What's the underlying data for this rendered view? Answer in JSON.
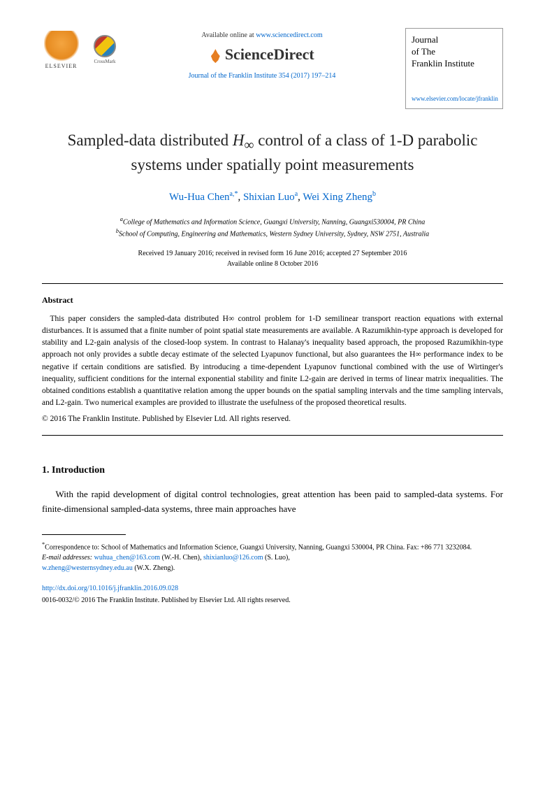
{
  "header": {
    "available_text": "Available online at ",
    "sciencedirect_url": "www.sciencedirect.com",
    "sciencedirect_brand": "ScienceDirect",
    "elsevier_label": "ELSEVIER",
    "crossmark_label": "CrossMark",
    "citation": "Journal of the Franklin Institute 354 (2017) 197–214",
    "journal_box_line1": "Journal",
    "journal_box_line2": "of The",
    "journal_box_line3": "Franklin Institute",
    "journal_locate_url": "www.elsevier.com/locate/jfranklin"
  },
  "title": {
    "pre": "Sampled-data distributed ",
    "symbol": "H",
    "sub": "∞",
    "post": " control of a class of 1-D parabolic systems under spatially point measurements"
  },
  "authors": [
    {
      "name": "Wu-Hua Chen",
      "affil": "a,",
      "corr": "*"
    },
    {
      "name": "Shixian Luo",
      "affil": "a",
      "corr": ""
    },
    {
      "name": "Wei Xing Zheng",
      "affil": "b",
      "corr": ""
    }
  ],
  "affiliations": {
    "a": "College of Mathematics and Information Science, Guangxi University, Nanning, Guangxi530004, PR China",
    "b": "School of Computing, Engineering and Mathematics, Western Sydney University, Sydney, NSW 2751, Australia"
  },
  "dates": {
    "received": "Received 19 January 2016; received in revised form 16 June 2016; accepted 27 September 2016",
    "online": "Available online 8 October 2016"
  },
  "abstract": {
    "heading": "Abstract",
    "text": "This paper considers the sampled-data distributed H∞ control problem for 1-D semilinear transport reaction equations with external disturbances. It is assumed that a finite number of point spatial state measurements are available. A Razumikhin-type approach is developed for stability and L2-gain analysis of the closed-loop system. In contrast to Halanay's inequality based approach, the proposed Razumikhin-type approach not only provides a subtle decay estimate of the selected Lyapunov functional, but also guarantees the H∞ performance index to be negative if certain conditions are satisfied. By introducing a time-dependent Lyapunov functional combined with the use of Wirtinger's inequality, sufficient conditions for the internal exponential stability and finite L2-gain are derived in terms of linear matrix inequalities. The obtained conditions establish a quantitative relation among the upper bounds on the spatial sampling intervals and the time sampling intervals, and L2-gain. Two numerical examples are provided to illustrate the usefulness of the proposed theoretical results.",
    "copyright": "© 2016 The Franklin Institute. Published by Elsevier Ltd. All rights reserved."
  },
  "section1": {
    "heading": "1. Introduction",
    "para1": "With the rapid development of digital control technologies, great attention has been paid to sampled-data systems. For finite-dimensional sampled-data systems, three main approaches have"
  },
  "footnotes": {
    "correspondence": "Correspondence to: School of Mathematics and Information Science, Guangxi University, Nanning, Guangxi 530004, PR China. Fax: +86 771 3232084.",
    "email_label": "E-mail addresses:",
    "emails": [
      {
        "addr": "wuhua_chen@163.com",
        "who": "(W.-H. Chen)"
      },
      {
        "addr": "shixianluo@126.com",
        "who": "(S. Luo)"
      },
      {
        "addr": "w.zheng@westernsydney.edu.au",
        "who": "(W.X. Zheng)"
      }
    ]
  },
  "footer": {
    "doi": "http://dx.doi.org/10.1016/j.jfranklin.2016.09.028",
    "issn": "0016-0032/© 2016 The Franklin Institute. Published by Elsevier Ltd. All rights reserved."
  },
  "colors": {
    "link": "#0066cc",
    "text": "#000000",
    "elsevier_orange": "#e68a1f"
  }
}
